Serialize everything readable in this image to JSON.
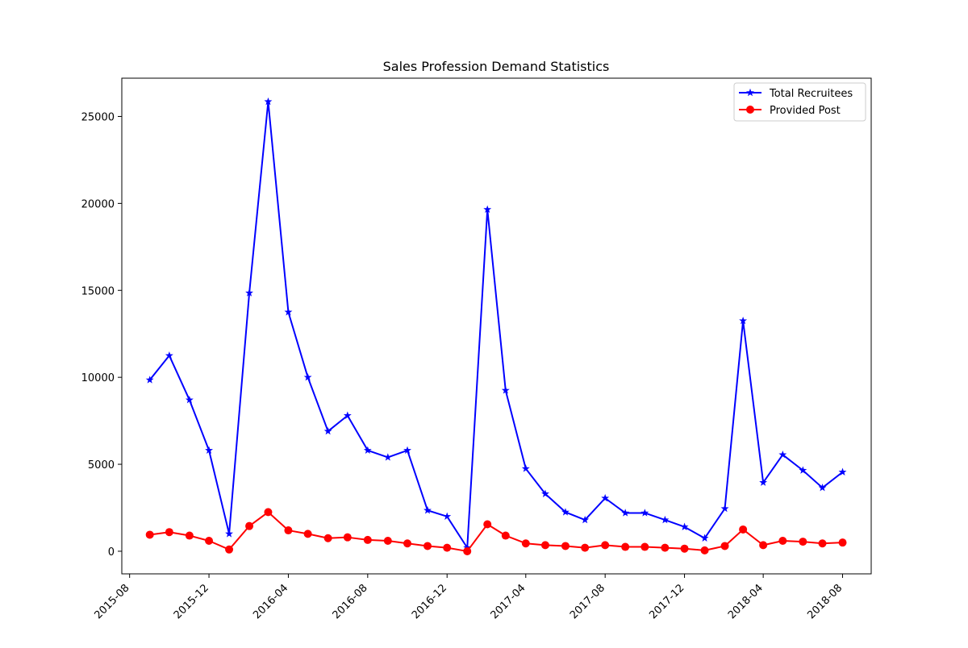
{
  "chart_data": {
    "type": "line",
    "title": "Sales  Profession Demand Statistics",
    "xlabel": "",
    "ylabel": "",
    "x_ticks": [
      "2015-08",
      "2015-12",
      "2016-04",
      "2016-08",
      "2016-12",
      "2017-04",
      "2017-08",
      "2017-12",
      "2018-04",
      "2018-08"
    ],
    "y_ticks": [
      0,
      5000,
      10000,
      15000,
      20000,
      25000
    ],
    "xlim": [
      "2015-07-20",
      "2018-09-14"
    ],
    "ylim": [
      -1300,
      27200
    ],
    "x": [
      "2015-09",
      "2015-10",
      "2015-11",
      "2015-12",
      "2016-01",
      "2016-02",
      "2016-03",
      "2016-04",
      "2016-05",
      "2016-06",
      "2016-07",
      "2016-08",
      "2016-09",
      "2016-10",
      "2016-11",
      "2016-12",
      "2017-01",
      "2017-02",
      "2017-03",
      "2017-04",
      "2017-05",
      "2017-06",
      "2017-07",
      "2017-08",
      "2017-09",
      "2017-10",
      "2017-11",
      "2017-12",
      "2018-01",
      "2018-02",
      "2018-03",
      "2018-04",
      "2018-05",
      "2018-06",
      "2018-07",
      "2018-08"
    ],
    "series": [
      {
        "name": "Total Recruitees",
        "color": "#0000ff",
        "marker": "star",
        "values": [
          9850,
          11250,
          8700,
          5800,
          1000,
          14850,
          25850,
          13750,
          10000,
          6900,
          7800,
          5800,
          5400,
          5800,
          2350,
          2000,
          200,
          19650,
          9250,
          4750,
          3300,
          2250,
          1800,
          3050,
          2200,
          2200,
          1800,
          1400,
          750,
          2450,
          13250,
          3950,
          5550,
          4650,
          3650,
          4550
        ]
      },
      {
        "name": "Provided Post",
        "color": "#ff0000",
        "marker": "circle",
        "values": [
          950,
          1100,
          900,
          600,
          100,
          1450,
          2250,
          1200,
          1000,
          750,
          800,
          650,
          600,
          450,
          300,
          200,
          0,
          1550,
          900,
          450,
          350,
          300,
          200,
          350,
          250,
          250,
          200,
          150,
          50,
          300,
          1250,
          350,
          600,
          550,
          450,
          500
        ]
      }
    ],
    "grid": false,
    "legend_position": "top-right"
  }
}
